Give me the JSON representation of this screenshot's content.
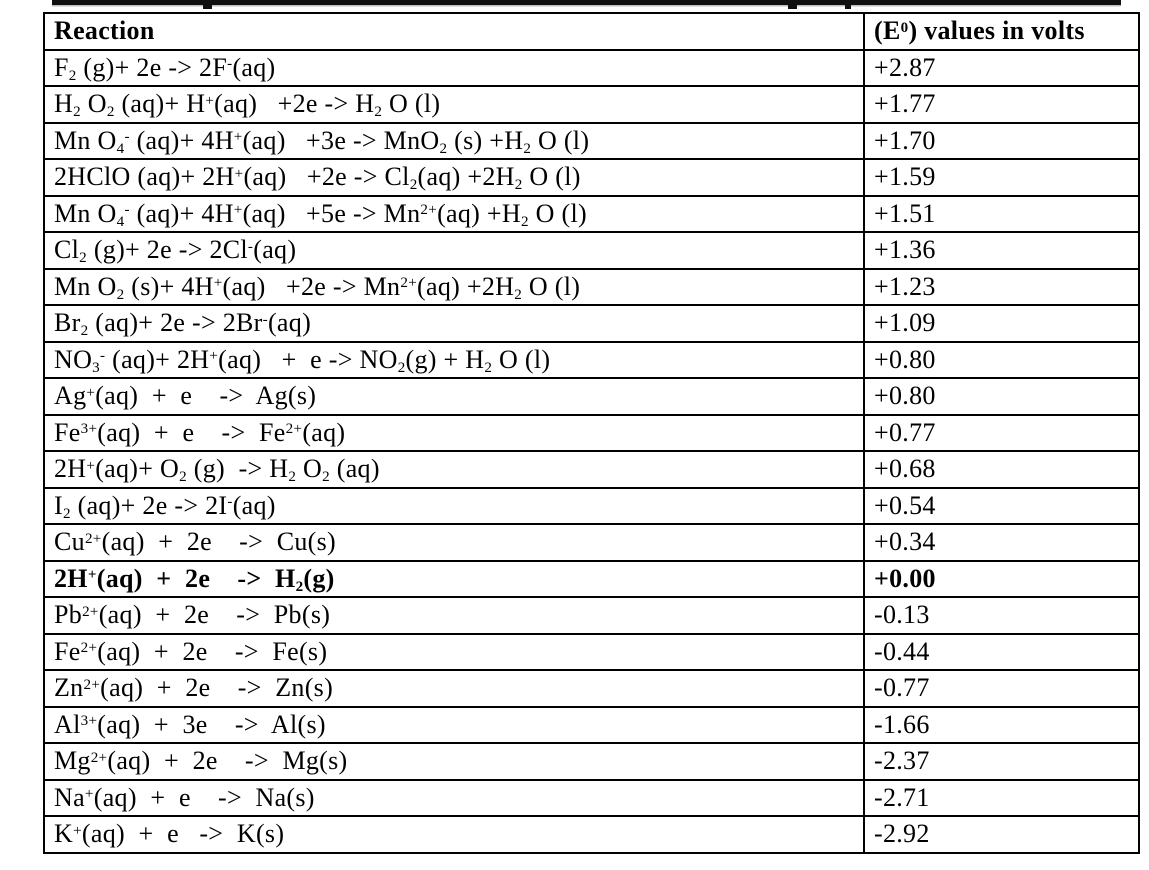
{
  "table": {
    "header": {
      "reaction_label": "Reaction",
      "values_label": "(E^{0}) values in volts"
    },
    "rows": [
      {
        "reaction": "F_{2} (g)+ 2e -> 2F^{-}(aq)",
        "value": "+2.87",
        "bold": false
      },
      {
        "reaction": "H_{2} O_{2} (aq)+ H^{+}(aq)   +2e -> H_{2} O (l)",
        "value": "+1.77",
        "bold": false
      },
      {
        "reaction": "Mn O_{4}^{-} (aq)+ 4H^{+}(aq)   +3e -> MnO_{2} (s) +H_{2} O (l)",
        "value": "+1.70",
        "bold": false
      },
      {
        "reaction": "2HClO (aq)+ 2H^{+}(aq)   +2e -> Cl_{2}(aq) +2H_{2} O (l)",
        "value": "+1.59",
        "bold": false
      },
      {
        "reaction": "Mn O_{4}^{-} (aq)+ 4H^{+}(aq)   +5e -> Mn^{2+}(aq) +H_{2} O (l)",
        "value": "+1.51",
        "bold": false
      },
      {
        "reaction": "Cl_{2} (g)+ 2e -> 2Cl^{-}(aq)",
        "value": "+1.36",
        "bold": false
      },
      {
        "reaction": "Mn O_{2} (s)+ 4H^{+}(aq)   +2e -> Mn^{2+}(aq) +2H_{2} O (l)",
        "value": "+1.23",
        "bold": false
      },
      {
        "reaction": "Br_{2} (aq)+ 2e -> 2Br^{-}(aq)",
        "value": "+1.09",
        "bold": false
      },
      {
        "reaction": "NO_{3}^{-} (aq)+ 2H^{+}(aq)   +  e -> NO_{2}(g) + H_{2} O (l)",
        "value": "+0.80",
        "bold": false
      },
      {
        "reaction": "Ag^{+}(aq)  +  e    ->  Ag(s)",
        "value": "+0.80",
        "bold": false
      },
      {
        "reaction": "Fe^{3+}(aq)  +  e    ->  Fe^{2+}(aq)",
        "value": "+0.77",
        "bold": false
      },
      {
        "reaction": "2H^{+}(aq)+ O_{2} (g)  -> H_{2} O_{2} (aq)",
        "value": "+0.68",
        "bold": false
      },
      {
        "reaction": "I_{2} (aq)+ 2e -> 2I^{-}(aq)",
        "value": "+0.54",
        "bold": false
      },
      {
        "reaction": "Cu^{2+}(aq)  +  2e    ->  Cu(s)",
        "value": "+0.34",
        "bold": false
      },
      {
        "reaction": "2H^{+}(aq)  +  2e    ->  H_{2}(g)",
        "value": "+0.00",
        "bold": true
      },
      {
        "reaction": "Pb^{2+}(aq)  +  2e    ->  Pb(s)",
        "value": "-0.13",
        "bold": false
      },
      {
        "reaction": "Fe^{2+}(aq)  +  2e    ->  Fe(s)",
        "value": "-0.44",
        "bold": false
      },
      {
        "reaction": "Zn^{2+}(aq)  +  2e    ->  Zn(s)",
        "value": "-0.77",
        "bold": false
      },
      {
        "reaction": "Al^{3+}(aq)  +  3e    ->  Al(s)",
        "value": "-1.66",
        "bold": false
      },
      {
        "reaction": "Mg^{2+}(aq)  +  2e    ->  Mg(s)",
        "value": "-2.37",
        "bold": false
      },
      {
        "reaction": "Na^{+}(aq)  +  e    ->  Na(s)",
        "value": "-2.71",
        "bold": false
      },
      {
        "reaction": "K^{+}(aq)  +  e   ->  K(s)",
        "value": "-2.92",
        "bold": false
      }
    ]
  }
}
